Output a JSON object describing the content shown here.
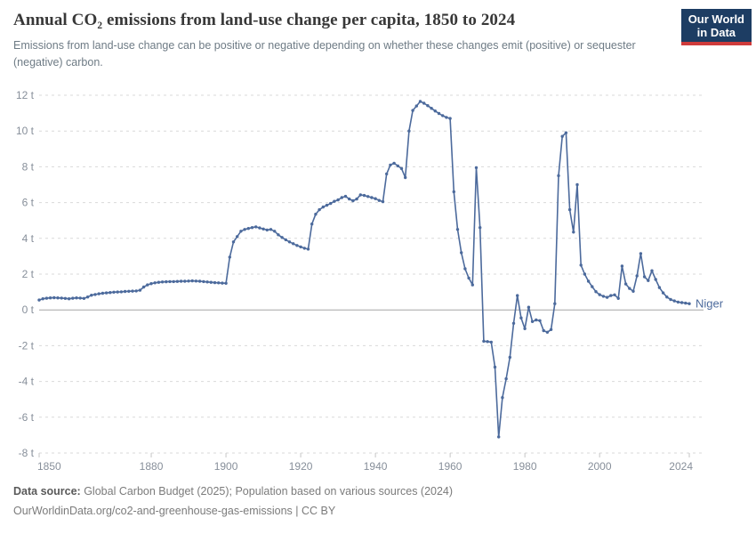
{
  "header": {
    "title": "Annual CO₂ emissions from land-use change per capita, 1850 to 2024",
    "subtitle": "Emissions from land-use change can be positive or negative depending on whether these changes emit (positive) or sequester (negative) carbon."
  },
  "logo": {
    "line1": "Our World",
    "line2": "in Data"
  },
  "series_label": "Niger",
  "footer": {
    "source_label": "Data source:",
    "source_text": " Global Carbon Budget (2025); Population based on various sources (2024)",
    "note_text": "OurWorldinData.org/co2-and-greenhouse-gas-emissions | CC BY"
  },
  "colors": {
    "line": "#4c6a9c",
    "series_label": "#4c6a9c",
    "logo_bg": "#1d3d63",
    "logo_red": "#cf3b3b",
    "grid": "#d9d9d9",
    "zero_line": "#a6a6a6",
    "axis_text": "#878f9a",
    "tick": "#c6c6c6"
  },
  "chart_data": {
    "type": "line",
    "title": "Annual CO₂ emissions from land-use change per capita, 1850 to 2024",
    "entity": "Niger",
    "unit": "t",
    "xlabel": "",
    "ylabel": "",
    "x_start": 1850,
    "x_end": 2024,
    "ylim": [
      -8,
      12
    ],
    "ytick_step": 2,
    "ytick_suffix": " t",
    "xticks": [
      1850,
      1880,
      1900,
      1920,
      1940,
      1960,
      1980,
      2000,
      2024
    ],
    "grid": "dashed-horizontal",
    "legend_position": "end-of-line",
    "series": [
      {
        "name": "Niger",
        "values": [
          0.55,
          0.62,
          0.65,
          0.67,
          0.68,
          0.67,
          0.66,
          0.64,
          0.62,
          0.65,
          0.67,
          0.66,
          0.64,
          0.72,
          0.82,
          0.86,
          0.9,
          0.93,
          0.95,
          0.97,
          0.99,
          1.0,
          1.01,
          1.03,
          1.04,
          1.05,
          1.06,
          1.1,
          1.28,
          1.4,
          1.47,
          1.51,
          1.54,
          1.56,
          1.57,
          1.58,
          1.58,
          1.59,
          1.6,
          1.6,
          1.61,
          1.62,
          1.61,
          1.6,
          1.58,
          1.56,
          1.54,
          1.52,
          1.51,
          1.5,
          1.49,
          2.95,
          3.8,
          4.1,
          4.4,
          4.5,
          4.55,
          4.6,
          4.64,
          4.58,
          4.52,
          4.47,
          4.5,
          4.4,
          4.2,
          4.05,
          3.92,
          3.8,
          3.7,
          3.6,
          3.52,
          3.45,
          3.4,
          4.8,
          5.35,
          5.6,
          5.75,
          5.85,
          5.95,
          6.07,
          6.15,
          6.28,
          6.35,
          6.2,
          6.1,
          6.2,
          6.43,
          6.4,
          6.34,
          6.28,
          6.22,
          6.12,
          6.05,
          7.6,
          8.1,
          8.2,
          8.05,
          7.9,
          7.4,
          10.0,
          11.15,
          11.4,
          11.65,
          11.55,
          11.42,
          11.27,
          11.12,
          10.98,
          10.86,
          10.76,
          10.7,
          6.6,
          4.5,
          3.2,
          2.3,
          1.78,
          1.4,
          7.95,
          4.6,
          -1.75,
          -1.77,
          -1.8,
          -3.2,
          -7.1,
          -4.9,
          -3.85,
          -2.65,
          -0.75,
          0.8,
          -0.45,
          -1.05,
          0.15,
          -0.65,
          -0.56,
          -0.6,
          -1.16,
          -1.25,
          -1.1,
          0.35,
          7.5,
          9.7,
          9.9,
          5.6,
          4.35,
          7.0,
          2.5,
          2.0,
          1.6,
          1.3,
          1.02,
          0.85,
          0.76,
          0.7,
          0.8,
          0.84,
          0.64,
          2.45,
          1.45,
          1.2,
          1.04,
          1.9,
          3.15,
          1.85,
          1.64,
          2.19,
          1.7,
          1.25,
          0.95,
          0.72,
          0.58,
          0.5,
          0.44,
          0.41,
          0.38,
          0.35
        ]
      }
    ]
  }
}
